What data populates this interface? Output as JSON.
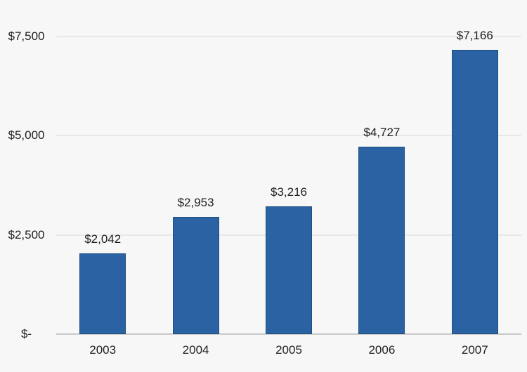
{
  "chart_data": {
    "type": "bar",
    "title": "",
    "categories": [
      "2003",
      "2004",
      "2005",
      "2006",
      "2007"
    ],
    "values": [
      2042,
      2953,
      3216,
      4727,
      7166
    ],
    "value_labels": [
      "$2,042",
      "$2,953",
      "$3,216",
      "$4,727",
      "$7,166"
    ],
    "y_ticks": [
      {
        "value": 0,
        "label": "$-"
      },
      {
        "value": 2500,
        "label": "$2,500"
      },
      {
        "value": 5000,
        "label": "$5,000"
      },
      {
        "value": 7500,
        "label": "$7,500"
      }
    ],
    "ylim": [
      0,
      7500
    ],
    "xlabel": "",
    "ylabel": "",
    "grid": true,
    "legend": false,
    "colors": {
      "bar_fill": "#2a62a4",
      "bar_border": "#1d5080",
      "grid_line": "#e8e8e8",
      "axis_line": "#c9c9c9",
      "text": "#1f1f1f",
      "background": "#f7f7f7"
    }
  }
}
